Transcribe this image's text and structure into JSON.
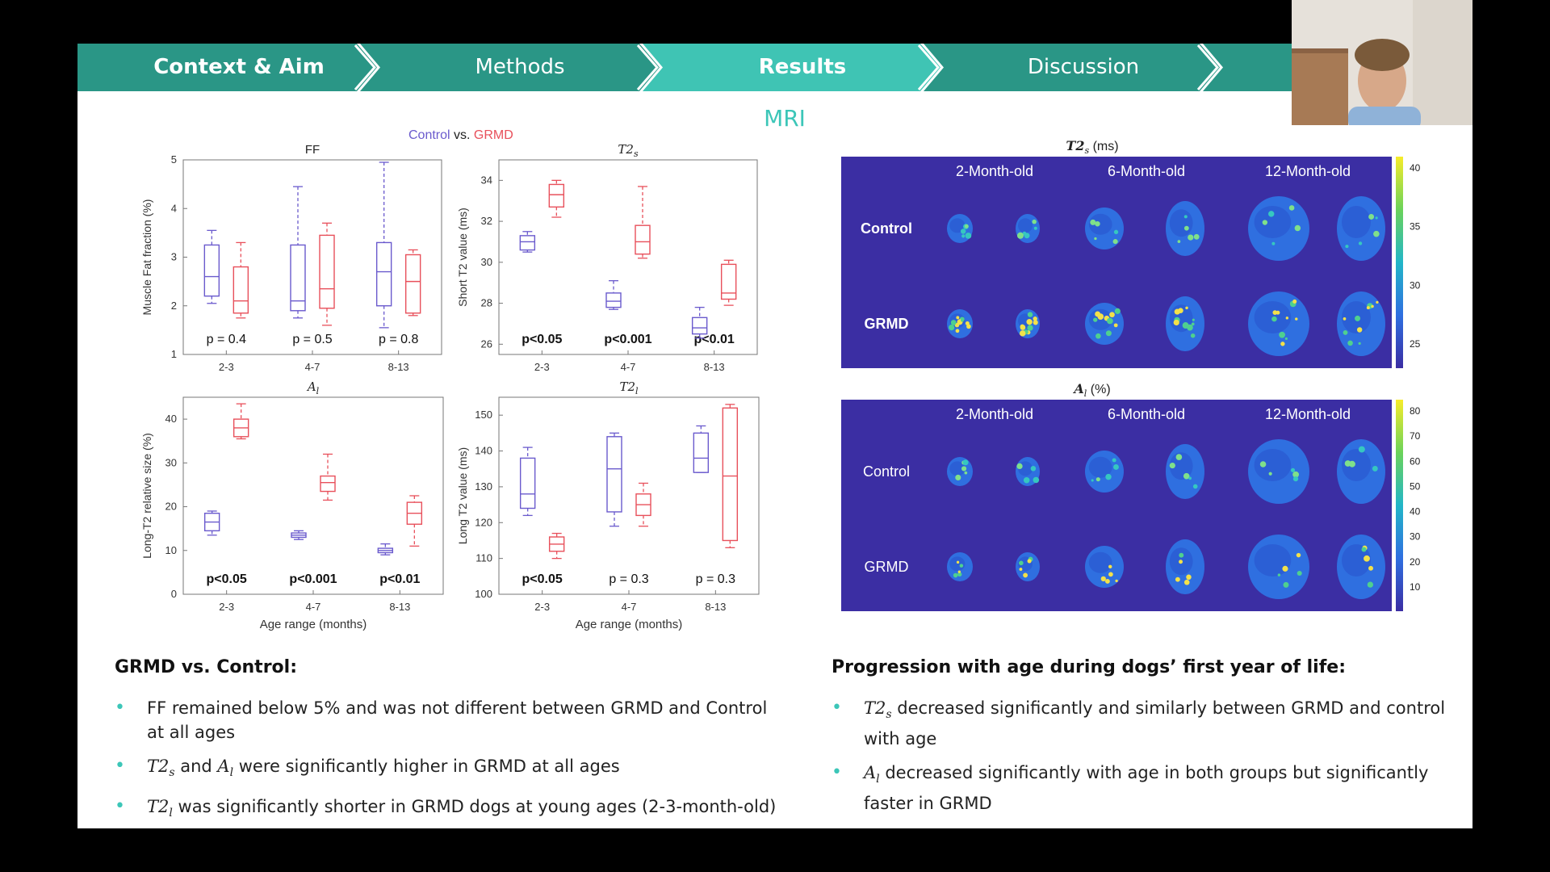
{
  "nav": {
    "tabs": [
      {
        "label": "Context & Aim",
        "bold": true
      },
      {
        "label": "Methods",
        "bold": false
      },
      {
        "label": "Results",
        "bold": true
      },
      {
        "label": "Discussion",
        "bold": false
      }
    ],
    "colors": {
      "dark": "#2a9686",
      "light": "#3fc4b4"
    }
  },
  "title": "MRI",
  "legend": {
    "control": "Control",
    "vs": " vs. ",
    "grmd": "GRMD",
    "control_color": "#6a5acd",
    "grmd_color": "#e8505b"
  },
  "chart_data": [
    {
      "type": "box",
      "title": "FF",
      "ylabel": "Muscle Fat fraction (%)",
      "xlabel": "",
      "categories": [
        "2-3",
        "4-7",
        "8-13"
      ],
      "ylim": [
        1,
        5
      ],
      "yticks": [
        1,
        2,
        3,
        4,
        5
      ],
      "pvalues": [
        "p = 0.4",
        "p = 0.5",
        "p = 0.8"
      ],
      "pbold": false,
      "series": [
        {
          "name": "Control",
          "boxes": [
            [
              2.05,
              2.2,
              2.6,
              3.25,
              3.55
            ],
            [
              1.75,
              1.9,
              2.1,
              3.25,
              4.45
            ],
            [
              1.55,
              2.0,
              2.7,
              3.3,
              4.95
            ]
          ]
        },
        {
          "name": "GRMD",
          "boxes": [
            [
              1.75,
              1.85,
              2.1,
              2.8,
              3.3
            ],
            [
              1.6,
              1.95,
              2.35,
              3.45,
              3.7
            ],
            [
              1.8,
              1.85,
              2.5,
              3.05,
              3.15
            ]
          ]
        }
      ]
    },
    {
      "type": "box",
      "title": "T2s",
      "ylabel": "Short T2 value (ms)",
      "xlabel": "",
      "categories": [
        "2-3",
        "4-7",
        "8-13"
      ],
      "ylim": [
        25.5,
        35
      ],
      "yticks": [
        26,
        28,
        30,
        32,
        34
      ],
      "pvalues": [
        "p<0.05",
        "p<0.001",
        "p<0.01"
      ],
      "pbold": true,
      "series": [
        {
          "name": "Control",
          "boxes": [
            [
              30.5,
              30.6,
              31.0,
              31.3,
              31.5
            ],
            [
              27.7,
              27.8,
              28.1,
              28.5,
              29.1
            ],
            [
              26.3,
              26.5,
              26.8,
              27.3,
              27.8
            ]
          ]
        },
        {
          "name": "GRMD",
          "boxes": [
            [
              32.2,
              32.7,
              33.3,
              33.8,
              34.0
            ],
            [
              30.2,
              30.4,
              31.0,
              31.8,
              33.7
            ],
            [
              27.9,
              28.2,
              28.5,
              29.9,
              30.1
            ]
          ]
        }
      ]
    },
    {
      "type": "box",
      "title": "Al",
      "ylabel": "Long-T2 relative size (%)",
      "xlabel": "Age range (months)",
      "categories": [
        "2-3",
        "4-7",
        "8-13"
      ],
      "ylim": [
        0,
        45
      ],
      "yticks": [
        0,
        10,
        20,
        30,
        40
      ],
      "pvalues": [
        "p<0.05",
        "p<0.001",
        "p<0.01"
      ],
      "pbold": true,
      "series": [
        {
          "name": "Control",
          "boxes": [
            [
              13.5,
              14.5,
              16.5,
              18.5,
              19.0
            ],
            [
              12.5,
              13.0,
              13.5,
              14.0,
              14.5
            ],
            [
              9.0,
              9.5,
              10.0,
              10.5,
              11.5
            ]
          ]
        },
        {
          "name": "GRMD",
          "boxes": [
            [
              35.5,
              36.0,
              38.0,
              40.0,
              43.5
            ],
            [
              21.5,
              23.5,
              25.5,
              27.0,
              32.0
            ],
            [
              11.0,
              16.0,
              18.5,
              21.0,
              22.5
            ]
          ]
        }
      ]
    },
    {
      "type": "box",
      "title": "T2l",
      "ylabel": "Long T2 value (ms)",
      "xlabel": "Age range (months)",
      "categories": [
        "2-3",
        "4-7",
        "8-13"
      ],
      "ylim": [
        100,
        155
      ],
      "yticks": [
        100,
        110,
        120,
        130,
        140,
        150
      ],
      "pvalues": [
        "p<0.05",
        "p = 0.3",
        "p = 0.3"
      ],
      "pbold": false,
      "series": [
        {
          "name": "Control",
          "boxes": [
            [
              122,
              124,
              128,
              138,
              141
            ],
            [
              119,
              123,
              135,
              144,
              145
            ],
            [
              134,
              134,
              138,
              145,
              147
            ]
          ]
        },
        {
          "name": "GRMD",
          "boxes": [
            [
              110,
              112,
              114,
              116,
              117
            ],
            [
              119,
              122,
              125,
              128,
              131
            ],
            [
              113,
              115,
              133,
              152,
              153
            ]
          ]
        }
      ]
    }
  ],
  "maps": [
    {
      "title_main": "T2",
      "title_sub": "s",
      "title_unit": " (ms)",
      "columns": [
        "2-Month-old",
        "6-Month-old",
        "12-Month-old"
      ],
      "rows": [
        "Control",
        "GRMD"
      ],
      "rows_bold": true,
      "colorbar_ticks": [
        "40",
        "35",
        "30",
        "25"
      ]
    },
    {
      "title_main": "A",
      "title_sub": "l",
      "title_unit": " (%)",
      "columns": [
        "2-Month-old",
        "6-Month-old",
        "12-Month-old"
      ],
      "rows": [
        "Control",
        "GRMD"
      ],
      "rows_bold": false,
      "colorbar_ticks": [
        "80",
        "70",
        "60",
        "50",
        "40",
        "30",
        "20",
        "10"
      ]
    }
  ],
  "left_block": {
    "heading": "GRMD vs. Control:",
    "b1": "FF remained below 5% and was not different between GRMD and Control at all ages",
    "b2_a": "T2",
    "b2_a_sub": "s",
    "b2_and": " and ",
    "b2_b": "A",
    "b2_b_sub": "l",
    "b2_rest": " were significantly higher in GRMD at all ages",
    "b3_a": "T2",
    "b3_a_sub": "l",
    "b3_rest": " was significantly shorter in GRMD dogs at young ages (2-3-month-old)"
  },
  "right_block": {
    "heading": "Progression with age during dogs’ first year of life:",
    "b1_a": "T2",
    "b1_a_sub": "s",
    "b1_rest": " decreased significantly and similarly between GRMD and control with age",
    "b2_a": "A",
    "b2_a_sub": "l",
    "b2_rest": " decreased significantly with age in both groups but significantly faster in GRMD"
  }
}
